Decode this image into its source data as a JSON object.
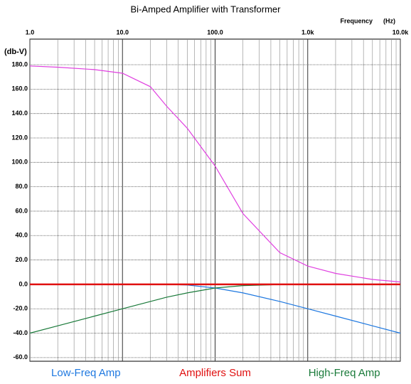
{
  "chart_data": {
    "type": "line",
    "title": "Bi-Amped Amplifier with Transformer",
    "x_label": "Frequency",
    "x_unit": "(Hz)",
    "y_label": "(db-V)",
    "x_scale": "log",
    "xlim": [
      1,
      10000
    ],
    "xticks": [
      {
        "value": 1,
        "label": "1.0"
      },
      {
        "value": 10,
        "label": "10.0"
      },
      {
        "value": 100,
        "label": "100.0"
      },
      {
        "value": 1000,
        "label": "1.0k"
      },
      {
        "value": 10000,
        "label": "10.0k"
      }
    ],
    "ylim": [
      -63,
      201
    ],
    "yticks": [
      {
        "value": -60,
        "label": "-60.0"
      },
      {
        "value": -40,
        "label": "-40.0"
      },
      {
        "value": -20,
        "label": "-20.0"
      },
      {
        "value": 0,
        "label": "0.0"
      },
      {
        "value": 20,
        "label": "20.0"
      },
      {
        "value": 40,
        "label": "40.0"
      },
      {
        "value": 60,
        "label": "60.0"
      },
      {
        "value": 80,
        "label": "80.0"
      },
      {
        "value": 100,
        "label": "100.0"
      },
      {
        "value": 120,
        "label": "120.0"
      },
      {
        "value": 140,
        "label": "140.0"
      },
      {
        "value": 160,
        "label": "160.0"
      },
      {
        "value": 180,
        "label": "180.0"
      }
    ],
    "grid": true,
    "minor_grid": true,
    "legend": "bottom",
    "x": [
      1,
      2,
      5,
      10,
      20,
      30,
      50,
      100,
      200,
      500,
      1000,
      2000,
      5000,
      10000
    ],
    "series": [
      {
        "color": "#e040e0",
        "values": [
          179,
          178,
          176,
          173,
          162,
          146,
          128,
          97,
          58,
          26,
          15,
          9,
          4,
          2
        ]
      },
      {
        "name": "Low-Freq Amp",
        "color": "#1e78e0",
        "values": [
          0,
          0,
          0,
          0,
          0,
          0,
          -0.5,
          -3,
          -7,
          -14,
          -20,
          -26,
          -34,
          -40
        ]
      },
      {
        "name": "Amplifiers Sum",
        "color": "#e01010",
        "values": [
          0,
          0,
          0,
          0,
          0,
          0,
          0,
          0,
          0,
          0,
          0,
          0,
          0,
          0
        ]
      },
      {
        "name": "High-Freq Amp",
        "color": "#1a7a3a",
        "values": [
          -40,
          -34,
          -26,
          -20,
          -14,
          -10.5,
          -7,
          -3,
          -1,
          -0.2,
          0,
          0,
          0,
          0
        ]
      }
    ]
  }
}
